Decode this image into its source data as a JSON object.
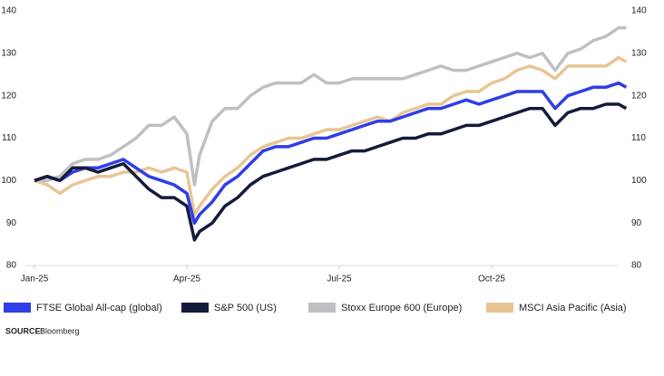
{
  "chart_data": {
    "type": "line",
    "x": [
      0,
      0.25,
      0.5,
      0.75,
      1,
      1.25,
      1.5,
      1.75,
      2,
      2.25,
      2.5,
      2.75,
      3,
      3.15,
      3.25,
      3.5,
      3.75,
      4,
      4.25,
      4.5,
      4.75,
      5,
      5.25,
      5.5,
      5.75,
      6,
      6.25,
      6.5,
      6.75,
      7,
      7.25,
      7.5,
      7.75,
      8,
      8.25,
      8.5,
      8.75,
      9,
      9.25,
      9.5,
      9.75,
      10,
      10.25,
      10.5,
      10.75,
      11,
      11.25,
      11.5,
      11.65
    ],
    "series": [
      {
        "name": "FTSE Global All-cap (global)",
        "color": "#2f3ee8",
        "values": [
          100,
          101,
          100,
          102,
          103,
          103,
          104,
          105,
          103,
          101,
          100,
          99,
          97,
          90,
          92,
          95,
          99,
          101,
          104,
          107,
          108,
          108,
          109,
          110,
          110,
          111,
          112,
          113,
          114,
          114,
          115,
          116,
          117,
          117,
          118,
          119,
          118,
          119,
          120,
          121,
          121,
          121,
          117,
          120,
          121,
          122,
          122,
          123,
          122
        ]
      },
      {
        "name": "S&P 500 (US)",
        "color": "#141b3a",
        "values": [
          100,
          101,
          100,
          103,
          103,
          102,
          103,
          104,
          101,
          98,
          96,
          96,
          94,
          86,
          88,
          90,
          94,
          96,
          99,
          101,
          102,
          103,
          104,
          105,
          105,
          106,
          107,
          107,
          108,
          109,
          110,
          110,
          111,
          111,
          112,
          113,
          113,
          114,
          115,
          116,
          117,
          117,
          113,
          116,
          117,
          117,
          118,
          118,
          117
        ]
      },
      {
        "name": "Stoxx Europe 600 (Europe)",
        "color": "#c0c0c4",
        "values": [
          100,
          100,
          101,
          104,
          105,
          105,
          106,
          108,
          110,
          113,
          113,
          115,
          111,
          99,
          106,
          114,
          117,
          117,
          120,
          122,
          123,
          123,
          123,
          125,
          123,
          123,
          124,
          124,
          124,
          124,
          124,
          125,
          126,
          127,
          126,
          126,
          127,
          128,
          129,
          130,
          129,
          130,
          126,
          130,
          131,
          133,
          134,
          136,
          136
        ]
      },
      {
        "name": "MSCI Asia Pacific (Asia)",
        "color": "#e8c594",
        "values": [
          100,
          99,
          97,
          99,
          100,
          101,
          101,
          102,
          102,
          103,
          102,
          103,
          102,
          92,
          94,
          98,
          101,
          103,
          106,
          108,
          109,
          110,
          110,
          111,
          112,
          112,
          113,
          114,
          115,
          114,
          116,
          117,
          118,
          118,
          120,
          121,
          121,
          123,
          124,
          126,
          127,
          126,
          124,
          127,
          127,
          127,
          127,
          129,
          128
        ]
      }
    ],
    "xlim": [
      0,
      12
    ],
    "xticks": [
      {
        "value": 0,
        "label": "Jan-25"
      },
      {
        "value": 3,
        "label": "Apr-25"
      },
      {
        "value": 6,
        "label": "Jul-25"
      },
      {
        "value": 9,
        "label": "Oct-25"
      }
    ],
    "ylim": [
      80,
      140
    ],
    "yticks": [
      80,
      90,
      100,
      110,
      120,
      130,
      140
    ],
    "source_label": "SOURCE:",
    "source": "Bloomberg"
  }
}
